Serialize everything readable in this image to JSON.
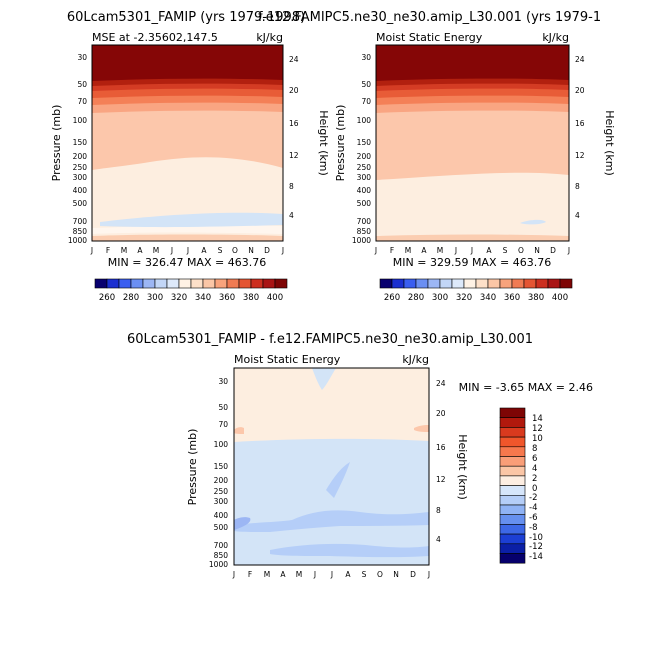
{
  "chart_data": [
    {
      "type": "heatmap",
      "title": "60Lcam5301_FAMIP (yrs 1979-1998)",
      "subtitle_left": "MSE at -2.35602,147.5",
      "subtitle_right": "kJ/kg",
      "ylabel": "Pressure (mb)",
      "ylabel_right": "Height (km)",
      "x_ticks": [
        "J",
        "F",
        "M",
        "A",
        "M",
        "J",
        "J",
        "A",
        "S",
        "O",
        "N",
        "D",
        "J"
      ],
      "y_ticks": [
        "30",
        "50",
        "70",
        "100",
        "150",
        "200",
        "250",
        "300",
        "400",
        "500",
        "700",
        "850",
        "1000"
      ],
      "y_right_ticks": [
        "24",
        "20",
        "16",
        "12",
        "8",
        "4"
      ],
      "min_max": "MIN = 326.47  MAX = 463.76",
      "contour_levels": [
        260,
        270,
        280,
        290,
        300,
        310,
        320,
        330,
        340,
        350,
        360,
        370,
        380,
        390,
        400,
        410
      ]
    },
    {
      "type": "heatmap",
      "title": "f.e12.FAMIPC5.ne30_ne30.amip_L30.001 (yrs 1979-1",
      "subtitle_left": "Moist Static Energy",
      "subtitle_right": "kJ/kg",
      "ylabel": "Pressure (mb)",
      "ylabel_right": "Height (km)",
      "x_ticks": [
        "J",
        "F",
        "M",
        "A",
        "M",
        "J",
        "J",
        "A",
        "S",
        "O",
        "N",
        "D",
        "J"
      ],
      "y_ticks": [
        "30",
        "50",
        "70",
        "100",
        "150",
        "200",
        "250",
        "300",
        "400",
        "500",
        "700",
        "850",
        "1000"
      ],
      "y_right_ticks": [
        "24",
        "20",
        "16",
        "12",
        "8",
        "4"
      ],
      "min_max": "MIN = 329.59  MAX = 463.76",
      "contour_levels": [
        260,
        270,
        280,
        290,
        300,
        310,
        320,
        330,
        340,
        350,
        360,
        370,
        380,
        390,
        400,
        410
      ]
    },
    {
      "type": "heatmap",
      "title": "60Lcam5301_FAMIP - f.e12.FAMIPC5.ne30_ne30.amip_L30.001",
      "subtitle_left": "Moist Static Energy",
      "subtitle_right": "kJ/kg",
      "ylabel": "Pressure (mb)",
      "ylabel_right": "Height (km)",
      "x_ticks": [
        "J",
        "F",
        "M",
        "A",
        "M",
        "J",
        "J",
        "A",
        "S",
        "O",
        "N",
        "D",
        "J"
      ],
      "y_ticks": [
        "30",
        "50",
        "70",
        "100",
        "150",
        "200",
        "250",
        "300",
        "400",
        "500",
        "700",
        "850",
        "1000"
      ],
      "y_right_ticks": [
        "24",
        "20",
        "16",
        "12",
        "8",
        "4"
      ],
      "min_max": "MIN =   -3.65  MAX =    2.46",
      "contour_levels": [
        -14,
        -12,
        -10,
        -8,
        -6,
        -4,
        -2,
        0,
        2,
        4,
        6,
        8,
        10,
        12,
        14
      ]
    }
  ],
  "colorbar_top": {
    "labels": [
      "260",
      "280",
      "300",
      "320",
      "340",
      "360",
      "380",
      "400"
    ],
    "colors": [
      "#08006f",
      "#1b2fd0",
      "#3a5ef0",
      "#6b8ff2",
      "#9cb6f4",
      "#c2d6f7",
      "#dde9fa",
      "#fff2e5",
      "#fde0c9",
      "#fbc6a6",
      "#f8a37c",
      "#f07b53",
      "#e45533",
      "#cc2f1f",
      "#a91414",
      "#7e0505"
    ]
  },
  "colorbar_diff": {
    "labels": [
      "14",
      "12",
      "10",
      "8",
      "6",
      "4",
      "2",
      "0",
      "-2",
      "-4",
      "-6",
      "-8",
      "-10",
      "-12",
      "-14"
    ],
    "colors": [
      "#7e0505",
      "#b1190d",
      "#d93a1e",
      "#f0562b",
      "#f6784d",
      "#f99e78",
      "#fbc6a6",
      "#fdeee2",
      "#d6e6fb",
      "#b5cef8",
      "#90b3f5",
      "#6690ef",
      "#3d68e6",
      "#1c3fd4",
      "#0b1fa6",
      "#06006c"
    ]
  }
}
